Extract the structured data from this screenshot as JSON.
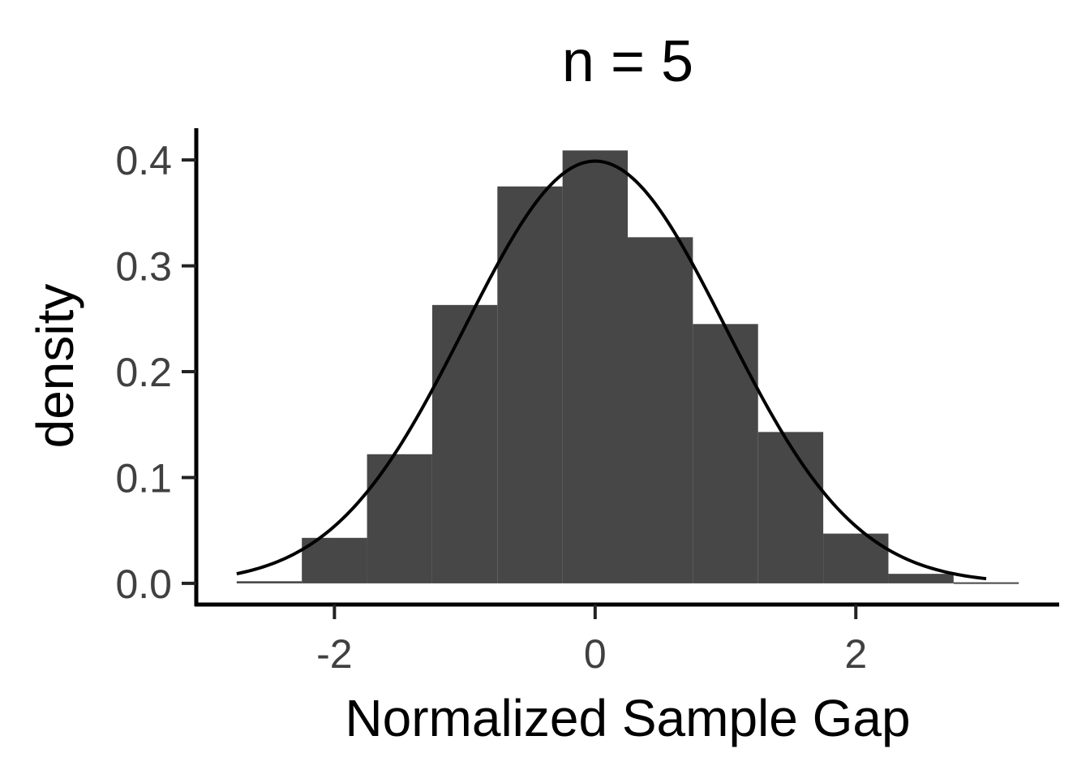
{
  "chart_data": {
    "type": "bar",
    "title": "n = 5",
    "xlabel": "Normalized Sample Gap",
    "ylabel": "density",
    "xlim": [
      -3.06,
      3.56
    ],
    "ylim": [
      -0.02,
      0.43
    ],
    "x_ticks": [
      {
        "value": -2,
        "label": "-2"
      },
      {
        "value": 0,
        "label": "0"
      },
      {
        "value": 2,
        "label": "2"
      }
    ],
    "y_ticks": [
      {
        "value": 0.0,
        "label": "0.0"
      },
      {
        "value": 0.1,
        "label": "0.1"
      },
      {
        "value": 0.2,
        "label": "0.2"
      },
      {
        "value": 0.3,
        "label": "0.3"
      },
      {
        "value": 0.4,
        "label": "0.4"
      }
    ],
    "histogram": {
      "bin_width": 0.5,
      "bins": [
        {
          "start": -2.75,
          "density": 0.002
        },
        {
          "start": -2.25,
          "density": 0.043
        },
        {
          "start": -1.75,
          "density": 0.122
        },
        {
          "start": -1.25,
          "density": 0.263
        },
        {
          "start": -0.75,
          "density": 0.375
        },
        {
          "start": -0.25,
          "density": 0.409
        },
        {
          "start": 0.25,
          "density": 0.327
        },
        {
          "start": 0.75,
          "density": 0.245
        },
        {
          "start": 1.25,
          "density": 0.143
        },
        {
          "start": 1.75,
          "density": 0.047
        },
        {
          "start": 2.25,
          "density": 0.009
        },
        {
          "start": 2.75,
          "density": 0.001
        }
      ],
      "color": "#474747"
    },
    "overlay": {
      "type": "normal-density-curve",
      "mean": 0,
      "sd": 1,
      "x_range": [
        -2.75,
        3.0
      ],
      "color": "#000000"
    },
    "grid": false,
    "legend": "none"
  }
}
